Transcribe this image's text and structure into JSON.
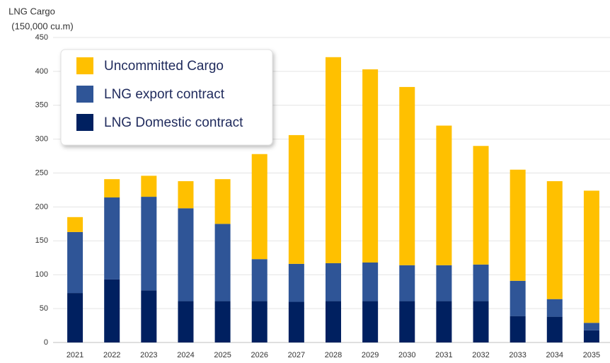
{
  "chart_data": {
    "type": "stacked_bar",
    "ylabel": [
      "LNG Cargo",
      "(150,000 cu.m)"
    ],
    "categories": [
      "2021",
      "2022",
      "2023",
      "2024",
      "2025",
      "2026",
      "2027",
      "2028",
      "2029",
      "2030",
      "2031",
      "2032",
      "2033",
      "2034",
      "2035"
    ],
    "series": [
      {
        "name": "LNG Domestic contract",
        "color": "#002060",
        "values": [
          73,
          93,
          77,
          61,
          61,
          61,
          60,
          61,
          61,
          61,
          61,
          61,
          39,
          38,
          18
        ]
      },
      {
        "name": "LNG export contract",
        "color": "#2f5597",
        "values": [
          90,
          121,
          138,
          137,
          114,
          62,
          56,
          56,
          57,
          53,
          53,
          54,
          52,
          26,
          11
        ]
      },
      {
        "name": "Uncommitted Cargo",
        "color": "#ffc000",
        "values": [
          22,
          27,
          31,
          40,
          66,
          155,
          190,
          304,
          285,
          263,
          206,
          175,
          164,
          174,
          195
        ]
      }
    ],
    "ylim": [
      0,
      450
    ],
    "yticks": [
      0,
      50,
      100,
      150,
      200,
      250,
      300,
      350,
      400,
      450
    ],
    "grid": true,
    "legend": "upper left"
  }
}
